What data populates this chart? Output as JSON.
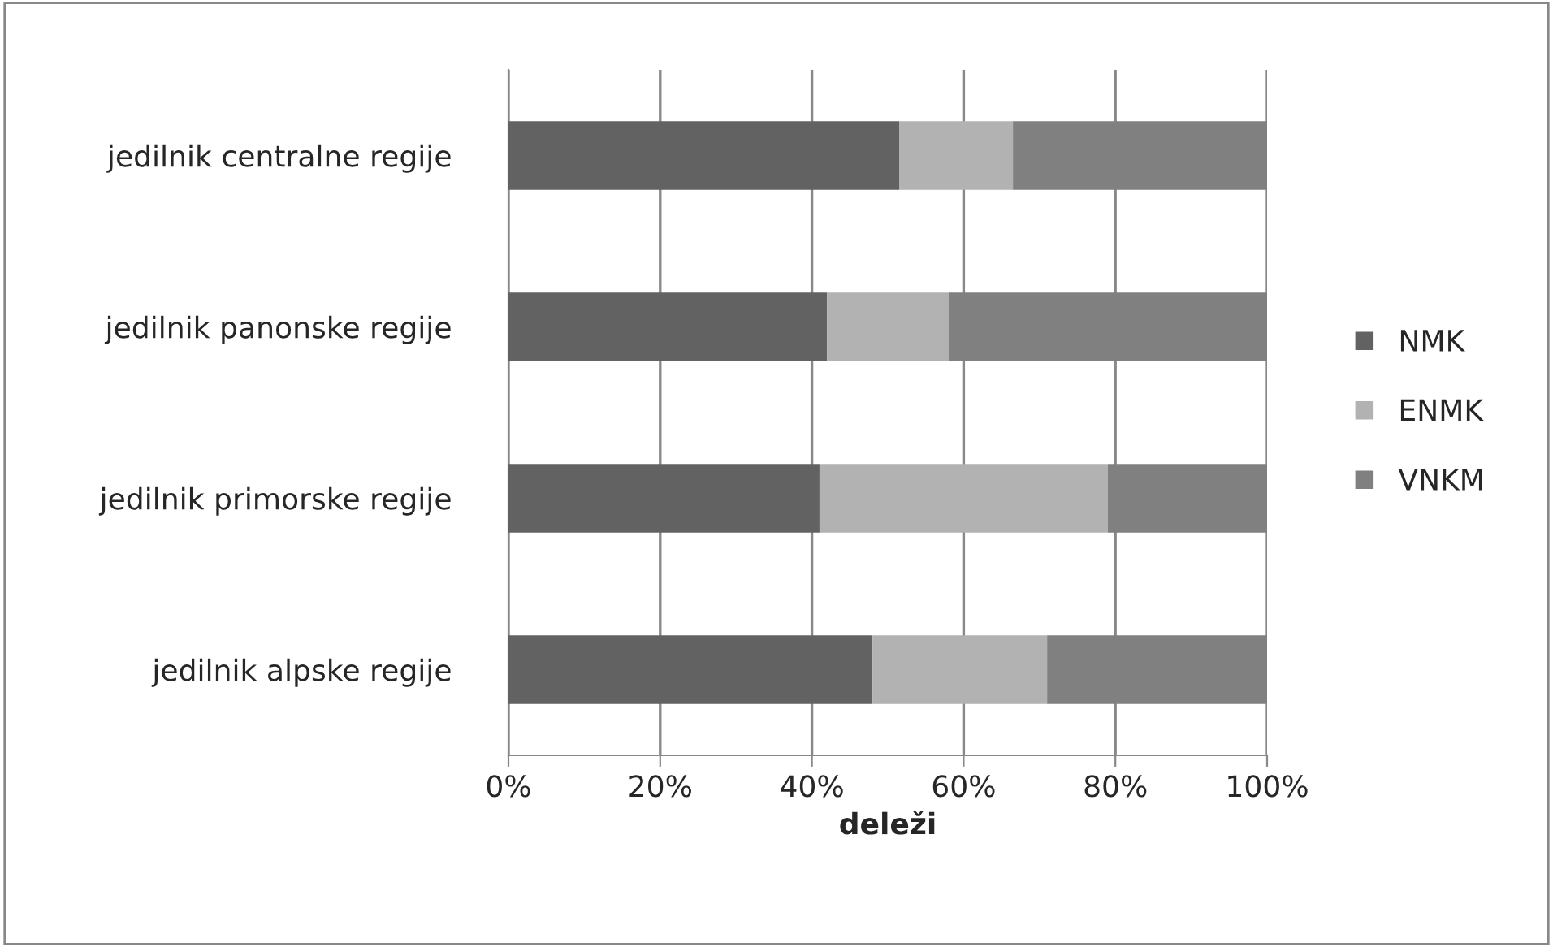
{
  "chart_data": {
    "type": "bar",
    "orientation": "horizontal",
    "stacked": true,
    "xlabel": "deleži",
    "categories": [
      "jedilnik centralne regije",
      "jedilnik panonske regije",
      "jedilnik primorske regije",
      "jedilnik alpske regije"
    ],
    "series": [
      {
        "name": "NMK",
        "color": "#626262",
        "values": [
          51.5,
          42,
          41,
          48
        ]
      },
      {
        "name": "ENMK",
        "color": "#b2b2b2",
        "values": [
          15,
          16,
          38,
          23
        ]
      },
      {
        "name": "VNKM",
        "color": "#808080",
        "values": [
          33.5,
          42,
          21,
          29
        ]
      }
    ],
    "xlim": [
      0,
      100
    ],
    "xticks": [
      {
        "value": 0,
        "label": "0%"
      },
      {
        "value": 20,
        "label": "20%"
      },
      {
        "value": 40,
        "label": "40%"
      },
      {
        "value": 60,
        "label": "60%"
      },
      {
        "value": 80,
        "label": "80%"
      },
      {
        "value": 100,
        "label": "100%"
      }
    ],
    "grid": "x",
    "legend": "right"
  }
}
